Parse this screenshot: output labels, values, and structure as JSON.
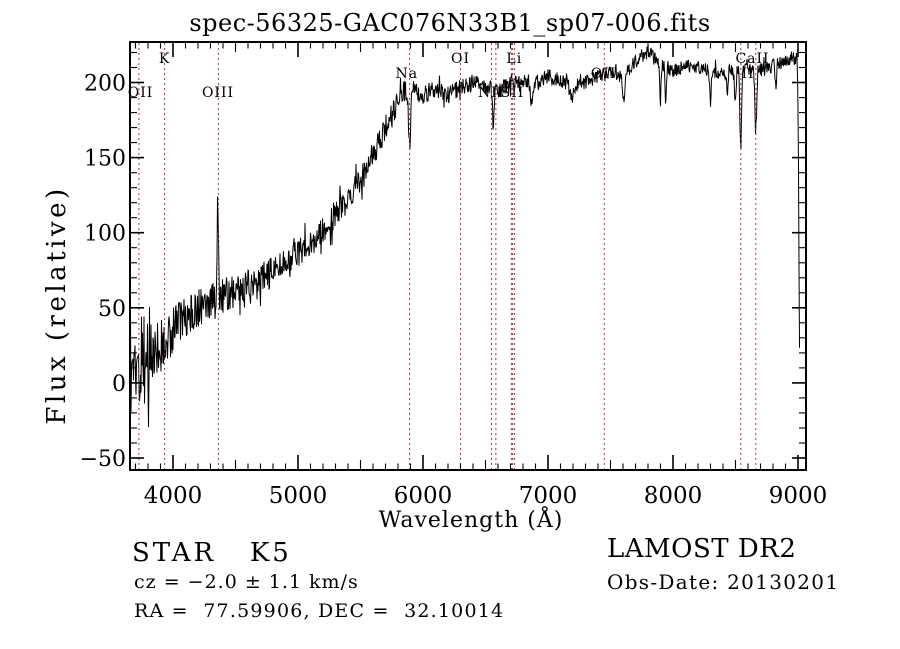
{
  "title": "spec-56325-GAC076N33B1_sp07-006.fits",
  "chart_data": {
    "type": "line",
    "title": "spec-56325-GAC076N33B1_sp07-006.fits",
    "xlabel": "Wavelength (Å)",
    "ylabel": "Flux (relative)",
    "xlim": [
      3656,
      9064
    ],
    "ylim": [
      -58,
      227
    ],
    "xticks": [
      4000,
      5000,
      6000,
      7000,
      8000,
      9000
    ],
    "yticks": [
      -50,
      0,
      50,
      100,
      150,
      200
    ],
    "x_minor_step": 100,
    "y_minor_step": 10,
    "grid": false,
    "legend": "none",
    "trace_color": "#000000",
    "line_marker_color": "#9c3a42",
    "spectral_lines": [
      3727,
      3933,
      4363,
      5893,
      6300,
      6548,
      6583,
      6707,
      6717,
      6731,
      7450,
      8542,
      8662
    ],
    "line_labels": [
      {
        "text": "OII",
        "wavelength": 3740,
        "row": 3
      },
      {
        "text": "K",
        "wavelength": 3933,
        "row": 1
      },
      {
        "text": "OIII",
        "wavelength": 4360,
        "row": 3
      },
      {
        "text": "Na",
        "wavelength": 5870,
        "row": 2
      },
      {
        "text": "OI",
        "wavelength": 6300,
        "row": 1
      },
      {
        "text": "NII",
        "wavelength": 6544,
        "row": 3
      },
      {
        "text": "Li",
        "wavelength": 6730,
        "row": 1
      },
      {
        "text": "SII",
        "wavelength": 6716,
        "row": 3
      },
      {
        "text": "OII",
        "wavelength": 7444,
        "row": 2
      },
      {
        "text": "CaII",
        "wavelength": 8636,
        "row": 1
      },
      {
        "text": "II",
        "wavelength": 8600,
        "row": 2
      }
    ],
    "envelope": [
      [
        3660,
        12
      ],
      [
        3700,
        14
      ],
      [
        3750,
        15
      ],
      [
        3800,
        18
      ],
      [
        3850,
        22
      ],
      [
        3900,
        25
      ],
      [
        3950,
        30
      ],
      [
        4000,
        35
      ],
      [
        4050,
        40
      ],
      [
        4100,
        44
      ],
      [
        4200,
        50
      ],
      [
        4300,
        54
      ],
      [
        4400,
        58
      ],
      [
        4500,
        62
      ],
      [
        4600,
        66
      ],
      [
        4700,
        70
      ],
      [
        4800,
        74
      ],
      [
        4900,
        80
      ],
      [
        5000,
        86
      ],
      [
        5100,
        93
      ],
      [
        5200,
        101
      ],
      [
        5300,
        111
      ],
      [
        5400,
        123
      ],
      [
        5500,
        136
      ],
      [
        5600,
        152
      ],
      [
        5700,
        170
      ],
      [
        5800,
        187
      ],
      [
        5850,
        194
      ],
      [
        5900,
        198
      ],
      [
        5950,
        193
      ],
      [
        6000,
        192
      ],
      [
        6100,
        196
      ],
      [
        6200,
        192
      ],
      [
        6300,
        197
      ],
      [
        6400,
        200
      ],
      [
        6500,
        197
      ],
      [
        6600,
        195
      ],
      [
        6700,
        199
      ],
      [
        6800,
        202
      ],
      [
        6900,
        200
      ],
      [
        7000,
        204
      ],
      [
        7100,
        201
      ],
      [
        7200,
        198
      ],
      [
        7300,
        200
      ],
      [
        7400,
        204
      ],
      [
        7500,
        207
      ],
      [
        7600,
        204
      ],
      [
        7700,
        214
      ],
      [
        7750,
        218
      ],
      [
        7800,
        220
      ],
      [
        7850,
        217
      ],
      [
        7900,
        213
      ],
      [
        7950,
        210
      ],
      [
        8000,
        208
      ],
      [
        8100,
        211
      ],
      [
        8200,
        211
      ],
      [
        8300,
        207
      ],
      [
        8400,
        207
      ],
      [
        8500,
        208
      ],
      [
        8600,
        209
      ],
      [
        8700,
        208
      ],
      [
        8800,
        212
      ],
      [
        8900,
        214
      ],
      [
        8950,
        215
      ],
      [
        8995,
        213
      ],
      [
        9002,
        175
      ],
      [
        9008,
        80
      ],
      [
        9014,
        -2
      ]
    ],
    "noise_amplitude": [
      [
        3660,
        34
      ],
      [
        3700,
        36
      ],
      [
        3760,
        30
      ],
      [
        3820,
        24
      ],
      [
        3900,
        20
      ],
      [
        4000,
        15
      ],
      [
        4150,
        13
      ],
      [
        4300,
        12
      ],
      [
        4500,
        11
      ],
      [
        4800,
        10
      ],
      [
        5100,
        9
      ],
      [
        5400,
        9
      ],
      [
        5700,
        8
      ],
      [
        5900,
        7
      ],
      [
        6100,
        6
      ],
      [
        6400,
        5.5
      ],
      [
        6800,
        5
      ],
      [
        7200,
        4.5
      ],
      [
        8000,
        4.5
      ],
      [
        8400,
        4.5
      ],
      [
        8800,
        5
      ],
      [
        9000,
        4
      ],
      [
        9014,
        2
      ]
    ],
    "features": [
      {
        "center": 4358,
        "amplitude": 72,
        "width": 5
      },
      {
        "center": 5893,
        "amplitude": -42,
        "width": 8
      },
      {
        "center": 6563,
        "amplitude": -24,
        "width": 7
      },
      {
        "center": 6870,
        "amplitude": -14,
        "width": 10
      },
      {
        "center": 7190,
        "amplitude": -10,
        "width": 14
      },
      {
        "center": 7605,
        "amplitude": -16,
        "width": 10
      },
      {
        "center": 7900,
        "amplitude": -28,
        "width": 5
      },
      {
        "center": 7942,
        "amplitude": -22,
        "width": 5
      },
      {
        "center": 8300,
        "amplitude": -20,
        "width": 6
      },
      {
        "center": 8434,
        "amplitude": -12,
        "width": 6
      },
      {
        "center": 8498,
        "amplitude": -24,
        "width": 6
      },
      {
        "center": 8542,
        "amplitude": -52,
        "width": 7
      },
      {
        "center": 8662,
        "amplitude": -40,
        "width": 7
      },
      {
        "center": 8822,
        "amplitude": -16,
        "width": 6
      }
    ],
    "sample_start": 3660,
    "sample_end": 9014,
    "sample_step": 4,
    "noise_seed": 20130201
  },
  "footer": {
    "class_line": "STAR   K5",
    "cz_line": "cz = −2.0 ± 1.1 km/s",
    "radec_line": "RA =  77.59906, DEC =  32.10014",
    "survey": "LAMOST DR2",
    "obs_date": "Obs-Date: 20130201"
  }
}
